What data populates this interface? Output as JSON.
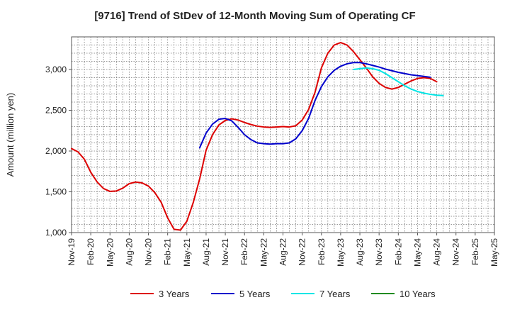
{
  "chart_data": {
    "type": "line",
    "title": "[9716]  Trend of StDev of 12-Month Moving Sum of Operating CF",
    "xlabel": "",
    "ylabel": "Amount (million yen)",
    "ylim": [
      1000,
      3400
    ],
    "yticks": [
      1000,
      1500,
      2000,
      2500,
      3000
    ],
    "ytick_labels": [
      "1,000",
      "1,500",
      "2,000",
      "2,500",
      "3,000"
    ],
    "x_start": "Nov-19",
    "x_months": 66,
    "xtick_labels": [
      "Nov-19",
      "Feb-20",
      "May-20",
      "Aug-20",
      "Nov-20",
      "Feb-21",
      "May-21",
      "Aug-21",
      "Nov-21",
      "Feb-22",
      "May-22",
      "Aug-22",
      "Nov-22",
      "Feb-23",
      "May-23",
      "Aug-23",
      "Nov-23",
      "Feb-24",
      "May-24",
      "Aug-24",
      "Nov-24",
      "Feb-25",
      "May-25"
    ],
    "grid": true,
    "legend_position": "bottom",
    "series": [
      {
        "name": "3 Years",
        "color": "#dd0000",
        "start_index": 0,
        "values": [
          2030,
          1990,
          1900,
          1740,
          1620,
          1540,
          1505,
          1510,
          1545,
          1600,
          1620,
          1610,
          1570,
          1490,
          1370,
          1180,
          1040,
          1030,
          1140,
          1370,
          1660,
          2010,
          2200,
          2320,
          2375,
          2395,
          2380,
          2350,
          2325,
          2305,
          2295,
          2290,
          2295,
          2300,
          2295,
          2310,
          2380,
          2510,
          2720,
          3020,
          3200,
          3300,
          3330,
          3300,
          3220,
          3120,
          3020,
          2910,
          2830,
          2780,
          2760,
          2780,
          2820,
          2860,
          2890,
          2900,
          2890,
          2850
        ]
      },
      {
        "name": "5 Years",
        "color": "#0000cc",
        "start_index": 20,
        "values": [
          2040,
          2220,
          2330,
          2390,
          2400,
          2370,
          2290,
          2200,
          2140,
          2100,
          2090,
          2085,
          2090,
          2090,
          2100,
          2150,
          2250,
          2400,
          2620,
          2790,
          2910,
          2990,
          3040,
          3070,
          3085,
          3085,
          3070,
          3050,
          3030,
          3005,
          2985,
          2965,
          2950,
          2935,
          2925,
          2915,
          2905
        ]
      },
      {
        "name": "7 Years",
        "color": "#00e5e5",
        "start_index": 44,
        "values": [
          3000,
          3010,
          3020,
          3010,
          2990,
          2950,
          2900,
          2850,
          2800,
          2760,
          2730,
          2710,
          2695,
          2685,
          2680
        ]
      },
      {
        "name": "10 Years",
        "color": "#228b22",
        "start_index": 0,
        "values": []
      }
    ]
  }
}
